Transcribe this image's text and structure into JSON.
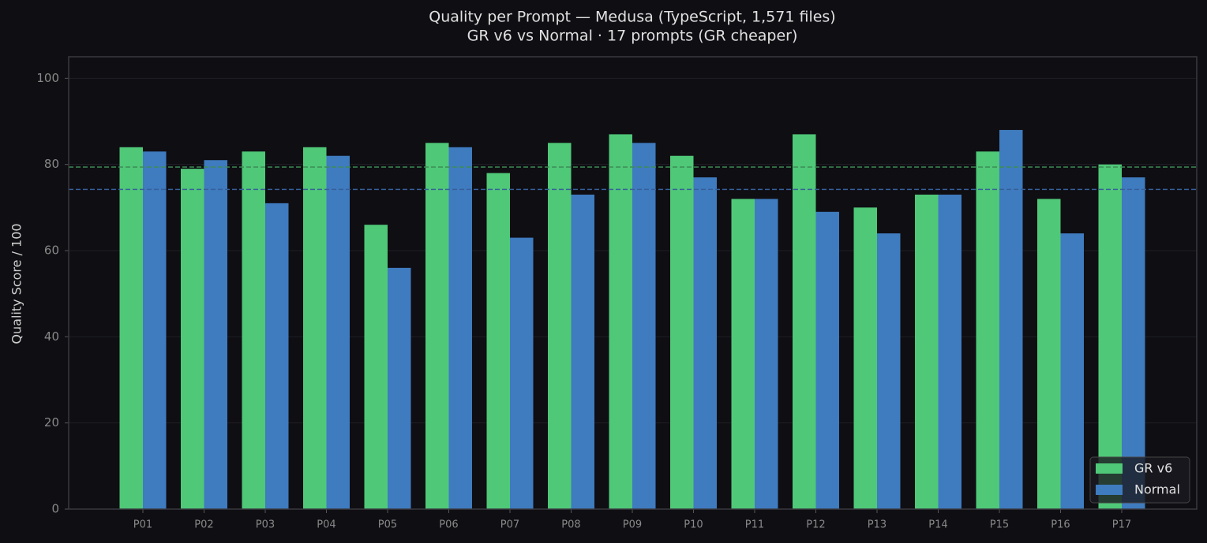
{
  "chart_data": {
    "type": "bar",
    "title": "Quality per Prompt — Medusa (TypeScript, 1,571 files)",
    "subtitle": "GR v6 vs Normal · 17 prompts (GR cheaper)",
    "y_label": "Quality Score / 100",
    "categories": [
      "P01",
      "P02",
      "P03",
      "P04",
      "P05",
      "P06",
      "P07",
      "P08",
      "P09",
      "P10",
      "P11",
      "P12",
      "P13",
      "P14",
      "P15",
      "P16",
      "P17"
    ],
    "series": [
      {
        "name": "GR v6",
        "color": "#4fc878",
        "values": [
          84,
          79,
          83,
          84,
          66,
          85,
          78,
          85,
          87,
          82,
          72,
          87,
          70,
          73,
          83,
          72,
          80
        ]
      },
      {
        "name": "Normal",
        "color": "#3f7bbf",
        "values": [
          83,
          81,
          71,
          82,
          56,
          84,
          63,
          73,
          85,
          77,
          72,
          69,
          64,
          73,
          88,
          64,
          77
        ]
      }
    ],
    "hlines": [
      {
        "value": 79.4,
        "color": "#3d8c55"
      },
      {
        "value": 74.2,
        "color": "#36609a"
      }
    ],
    "ylim": [
      0,
      105
    ],
    "yticks": [
      0,
      20,
      40,
      60,
      80,
      100
    ],
    "grid": true,
    "legend": "lower right"
  }
}
